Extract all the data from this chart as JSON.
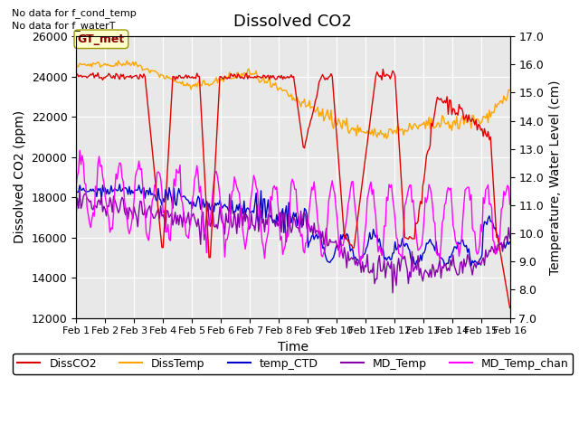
{
  "title": "Dissolved CO2",
  "xlabel": "Time",
  "ylabel_left": "Dissolved CO2 (ppm)",
  "ylabel_right": "Temperature, Water Level (cm)",
  "ylim_left": [
    12000,
    26000
  ],
  "ylim_right": [
    7.0,
    17.0
  ],
  "note1": "No data for f_cond_temp",
  "note2": "No data for f_waterT",
  "gt_met_label": "GT_met",
  "bg_color": "#e8e8e8",
  "xtick_labels": [
    "Feb 1",
    "Feb 2",
    "Feb 3",
    "Feb 4",
    "Feb 5",
    "Feb 6",
    "Feb 7",
    "Feb 8",
    "Feb 9",
    "Feb 10",
    "Feb 11",
    "Feb 12",
    "Feb 13",
    "Feb 14",
    "Feb 15",
    "Feb 16"
  ],
  "legend_entries": [
    "DissCO2",
    "DissTemp",
    "temp_CTD",
    "MD_Temp",
    "MD_Temp_chan"
  ],
  "legend_colors": [
    "#dd0000",
    "#ffa500",
    "#0000cc",
    "#8800aa",
    "#ff00ff"
  ],
  "title_fontsize": 13,
  "axis_label_fontsize": 10,
  "tick_fontsize": 9
}
